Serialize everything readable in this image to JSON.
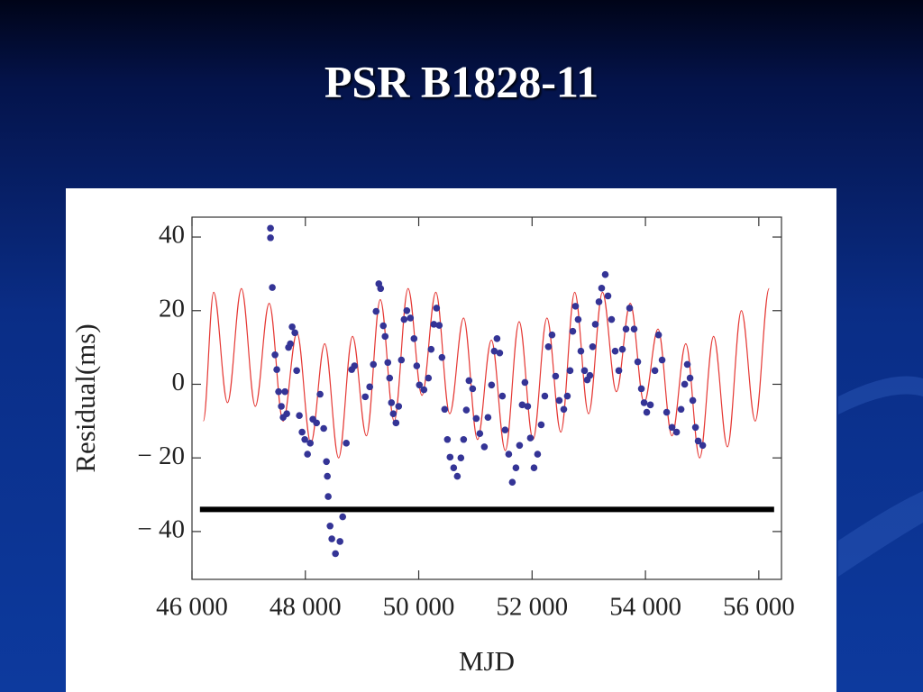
{
  "chart_data": {
    "type": "scatter",
    "title": "PSR B1828-11",
    "x_label": "MJD",
    "y_label": "Residual(ms)",
    "xlim": [
      46000,
      56400
    ],
    "ylim": [
      -53,
      45.4
    ],
    "xticks": [
      {
        "value": 46000,
        "label": "46 000"
      },
      {
        "value": 48000,
        "label": "48 000"
      },
      {
        "value": 50000,
        "label": "50 000"
      },
      {
        "value": 52000,
        "label": "52 000"
      },
      {
        "value": 54000,
        "label": "54 000"
      },
      {
        "value": 56000,
        "label": "56 000"
      }
    ],
    "yticks": [
      40,
      20,
      0,
      {
        "value": -20,
        "label": "− 20"
      },
      {
        "value": -40,
        "label": "− 40"
      }
    ],
    "series": [
      {
        "type": "scatter",
        "color": "#343496",
        "x": [
          47385,
          47385,
          47417,
          47465,
          47496,
          47528,
          47576,
          47608,
          47640,
          47672,
          47703,
          47735,
          47767,
          47815,
          47847,
          47894,
          47942,
          47990,
          48038,
          48086,
          48133,
          48197,
          48260,
          48324,
          48372,
          48388,
          48403,
          48436,
          48467,
          48531,
          48611,
          48659,
          48722,
          48818,
          48866,
          49057,
          49136,
          49200,
          49248,
          49296,
          49328,
          49375,
          49407,
          49455,
          49487,
          49519,
          49551,
          49599,
          49646,
          49694,
          49742,
          49790,
          49853,
          49917,
          49965,
          50012,
          50092,
          50171,
          50219,
          50267,
          50315,
          50362,
          50410,
          50458,
          50506,
          50553,
          50617,
          50681,
          50744,
          50792,
          50840,
          50887,
          50951,
          51015,
          51078,
          51158,
          51222,
          51285,
          51333,
          51381,
          51429,
          51476,
          51524,
          51588,
          51651,
          51715,
          51779,
          51826,
          51874,
          51922,
          51970,
          52034,
          52097,
          52161,
          52225,
          52288,
          52352,
          52415,
          52479,
          52559,
          52622,
          52670,
          52718,
          52766,
          52813,
          52861,
          52925,
          52973,
          53020,
          53068,
          53116,
          53180,
          53227,
          53291,
          53339,
          53402,
          53466,
          53530,
          53593,
          53657,
          53721,
          53800,
          53864,
          53928,
          53976,
          54023,
          54087,
          54167,
          54231,
          54294,
          54374,
          54469,
          54549,
          54628,
          54692,
          54739,
          54787,
          54835,
          54883,
          54930,
          55010
        ],
        "values": [
          42.4,
          39.8,
          26.3,
          8,
          4,
          -2,
          -6,
          -9,
          -2,
          -8,
          10,
          11,
          15.6,
          14,
          3.7,
          -8.5,
          -13,
          -15,
          -19,
          -16,
          -9.5,
          -10.5,
          -2.7,
          -12,
          -21,
          -25,
          -30.5,
          -38.5,
          -42,
          -46,
          -42.7,
          -36,
          -16,
          4,
          5,
          -3.4,
          -0.7,
          5.4,
          19.8,
          27.3,
          26,
          15.9,
          13,
          5.9,
          1.7,
          -5,
          -8,
          -10.5,
          -6,
          6.6,
          17.6,
          20,
          18,
          12.4,
          5,
          -0.2,
          -1.5,
          1.7,
          9.5,
          16.3,
          20.7,
          16,
          7.3,
          -6.8,
          -15,
          -19.8,
          -22.7,
          -25,
          -20,
          -15,
          -7,
          1,
          -1.2,
          -9.3,
          -13.4,
          -17,
          -9,
          -0.2,
          9,
          12.4,
          8.5,
          -3.2,
          -12.4,
          -19,
          -26.6,
          -22.7,
          -16.6,
          -5.6,
          0.5,
          -6,
          -14.6,
          -22.7,
          -19,
          -11,
          -3.2,
          10.2,
          13.4,
          2.2,
          -4.4,
          -6.8,
          -3.2,
          3.7,
          14.4,
          21.2,
          17.6,
          9,
          3.7,
          1.2,
          2.4,
          10.2,
          16.3,
          22.4,
          26.1,
          29.8,
          24,
          17.6,
          9,
          3.7,
          9.5,
          15,
          20.7,
          15,
          6.1,
          -1.2,
          -5,
          -7.6,
          -5.6,
          3.7,
          13.4,
          6.6,
          -7.6,
          -11.7,
          -13,
          -6.8,
          0,
          5.4,
          1.7,
          -4.4,
          -11.7,
          -15.4,
          -16.6
        ]
      },
      {
        "type": "line",
        "color": "#e53935",
        "x": [
          46200,
          46382,
          46627,
          46872,
          47117,
          47362,
          47607,
          47852,
          48097,
          48342,
          48587,
          48832,
          49077,
          49322,
          49567,
          49812,
          50057,
          50302,
          50547,
          50792,
          51037,
          51282,
          51527,
          51772,
          52017,
          52262,
          52507,
          52752,
          52997,
          53242,
          53487,
          53732,
          53977,
          54222,
          54467,
          54712,
          54957,
          55202,
          55447,
          55692,
          55937,
          56182
        ],
        "values": [
          -10,
          25,
          -5,
          26,
          -6,
          22,
          -10,
          14,
          -16,
          11,
          -20,
          13,
          -14,
          23,
          -10,
          26,
          -3,
          25,
          -8,
          18,
          -15,
          12,
          -18,
          17,
          -15,
          18,
          -13,
          25,
          -8,
          25,
          -2,
          22,
          -5,
          15,
          -14,
          11,
          -20,
          13,
          -17,
          20,
          -10,
          26
        ]
      },
      {
        "type": "line",
        "color": "#000000",
        "width": 6,
        "x": [
          46140,
          56270
        ],
        "values": [
          -34,
          -34
        ]
      }
    ]
  }
}
